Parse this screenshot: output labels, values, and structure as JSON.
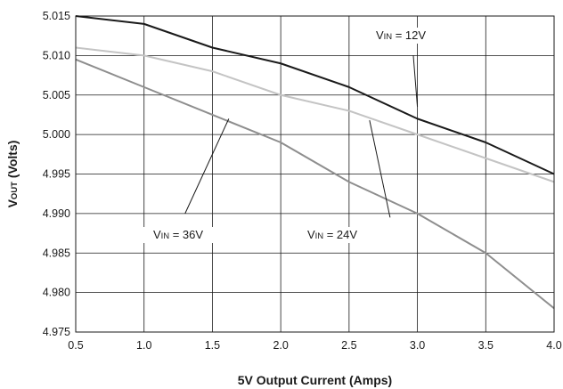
{
  "chart_data": {
    "type": "line",
    "title": "",
    "xlabel": "5V Output Current (Amps)",
    "ylabel_main": "V",
    "ylabel_sub": "OUT",
    "ylabel_rest": " (Volts)",
    "xlim": [
      0.5,
      4.0
    ],
    "ylim": [
      4.975,
      5.015
    ],
    "grid": true,
    "x_ticks": [
      "0.5",
      "1.0",
      "1.5",
      "2.0",
      "2.5",
      "3.0",
      "3.5",
      "4.0"
    ],
    "y_ticks": [
      "4.975",
      "4.980",
      "4.985",
      "4.990",
      "4.995",
      "5.000",
      "5.005",
      "5.010",
      "5.015"
    ],
    "x": [
      0.5,
      1.0,
      1.5,
      2.0,
      2.5,
      3.0,
      3.5,
      4.0
    ],
    "series": [
      {
        "name": "VIN = 12V",
        "label_main": "V",
        "label_sub": "IN",
        "label_rest": " = 12V",
        "color": "#1a1a1a",
        "values": [
          5.015,
          5.014,
          5.011,
          5.009,
          5.006,
          5.002,
          4.999,
          4.995
        ]
      },
      {
        "name": "VIN = 24V",
        "label_main": "V",
        "label_sub": "IN",
        "label_rest": " = 24V",
        "color": "#c4c4c4",
        "values": [
          5.011,
          5.01,
          5.008,
          5.005,
          5.003,
          5.0,
          4.997,
          4.994
        ]
      },
      {
        "name": "VIN = 36V",
        "label_main": "V",
        "label_sub": "IN",
        "label_rest": " = 36V",
        "color": "#8e8e8e",
        "values": [
          5.0095,
          5.006,
          5.0025,
          4.999,
          4.994,
          4.99,
          4.985,
          4.978
        ]
      }
    ]
  }
}
